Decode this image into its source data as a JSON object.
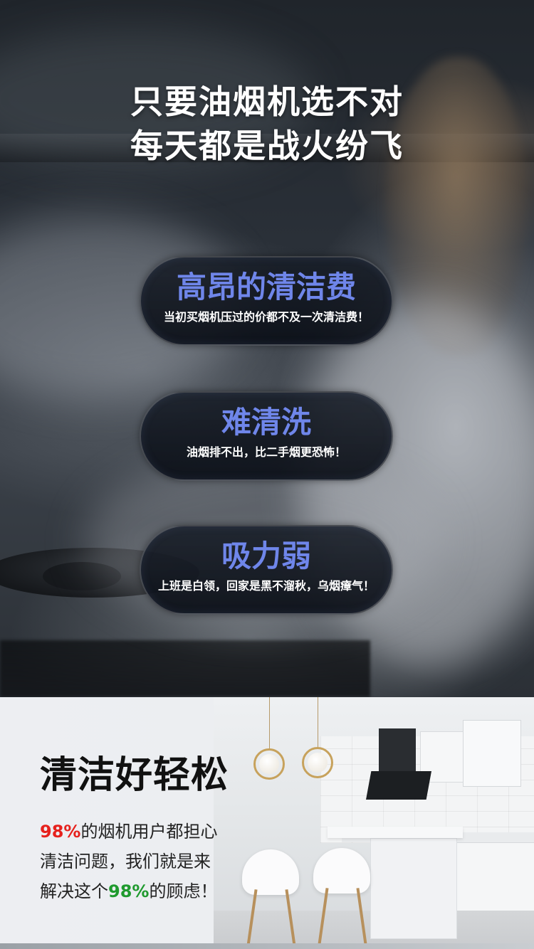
{
  "hero": {
    "headline": [
      "只要油烟机选不对",
      "每天都是战火纷飞"
    ],
    "pills": [
      {
        "title": "高昂的清洁费",
        "subtitle": "当初买烟机压过的价都不及一次清洁费！"
      },
      {
        "title": "难清洗",
        "subtitle": "油烟排不出，比二手烟更恐怖！"
      },
      {
        "title": "吸力弱",
        "subtitle": "上班是白领，回家是黑不溜秋，乌烟瘴气！"
      }
    ],
    "title_color": "#6f86ea"
  },
  "bottom": {
    "title": "清洁好轻松",
    "line1_highlight": "98%",
    "line1_rest": "的烟机用户都担心",
    "line2": "清洁问题，我们就是来",
    "line3_prefix": "解决这个",
    "line3_highlight": "98%",
    "line3_suffix": "的顾虑！",
    "highlight_colors": {
      "red": "#e6211d",
      "green": "#1f9a2e"
    }
  }
}
